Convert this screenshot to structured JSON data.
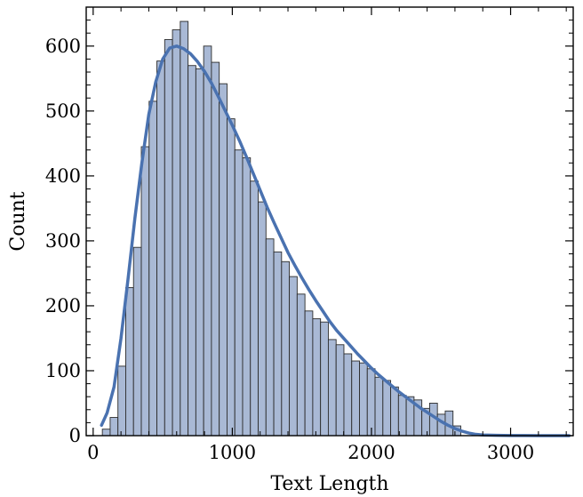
{
  "chart_data": {
    "type": "bar",
    "title": "",
    "xlabel": "Text Length",
    "ylabel": "Count",
    "xlim": [
      -50,
      3450
    ],
    "ylim": [
      0,
      660
    ],
    "xticks": [
      0,
      1000,
      2000,
      3000
    ],
    "xtick_labels": [
      "0",
      "1000",
      "2000",
      "3000"
    ],
    "yticks": [
      0,
      100,
      200,
      300,
      400,
      500,
      600
    ],
    "ytick_labels": [
      "0",
      "100",
      "200",
      "300",
      "400",
      "500",
      "600"
    ],
    "grid": false,
    "colors": {
      "bar_fill": "#a9b9d5",
      "bar_edge": "#2b2b2b",
      "kde_line": "#4a72b0"
    },
    "histogram": {
      "bin_edges": [
        66,
        122,
        178,
        234,
        290,
        346,
        402,
        458,
        514,
        570,
        626,
        682,
        738,
        794,
        850,
        906,
        962,
        1018,
        1074,
        1130,
        1186,
        1242,
        1298,
        1354,
        1410,
        1466,
        1522,
        1578,
        1634,
        1690,
        1746,
        1802,
        1858,
        1914,
        1970,
        2026,
        2082,
        2138,
        2194,
        2250,
        2306,
        2362,
        2418,
        2474,
        2530,
        2586,
        2642
      ],
      "counts": [
        10,
        28,
        107,
        228,
        290,
        445,
        515,
        577,
        610,
        625,
        638,
        570,
        565,
        600,
        575,
        542,
        488,
        440,
        428,
        392,
        360,
        303,
        283,
        268,
        245,
        218,
        192,
        180,
        175,
        148,
        140,
        126,
        115,
        112,
        103,
        90,
        85,
        75,
        62,
        60,
        55,
        42,
        50,
        33,
        38,
        15
      ]
    },
    "series": [
      {
        "type": "kde",
        "x": [
          60,
          100,
          150,
          200,
          250,
          300,
          350,
          400,
          450,
          500,
          550,
          600,
          650,
          700,
          750,
          800,
          850,
          900,
          950,
          1000,
          1050,
          1100,
          1150,
          1200,
          1250,
          1300,
          1350,
          1400,
          1450,
          1500,
          1550,
          1600,
          1650,
          1700,
          1750,
          1800,
          1850,
          1900,
          1950,
          2000,
          2050,
          2100,
          2150,
          2200,
          2250,
          2300,
          2350,
          2400,
          2450,
          2500,
          2550,
          2600,
          2650,
          2700,
          2750,
          2800,
          2900,
          3000,
          3100,
          3200,
          3300,
          3420
        ],
        "y": [
          16,
          35,
          75,
          150,
          240,
          335,
          420,
          495,
          545,
          580,
          597,
          600,
          596,
          588,
          576,
          561,
          543,
          522,
          500,
          478,
          455,
          430,
          404,
          378,
          352,
          328,
          305,
          282,
          262,
          243,
          225,
          208,
          192,
          176,
          162,
          150,
          138,
          126,
          115,
          104,
          94,
          85,
          76,
          67,
          59,
          51,
          43,
          36,
          29,
          22,
          16,
          11,
          7,
          4,
          2,
          1,
          0.5,
          0.2,
          0.1,
          0,
          0,
          0
        ]
      }
    ]
  }
}
